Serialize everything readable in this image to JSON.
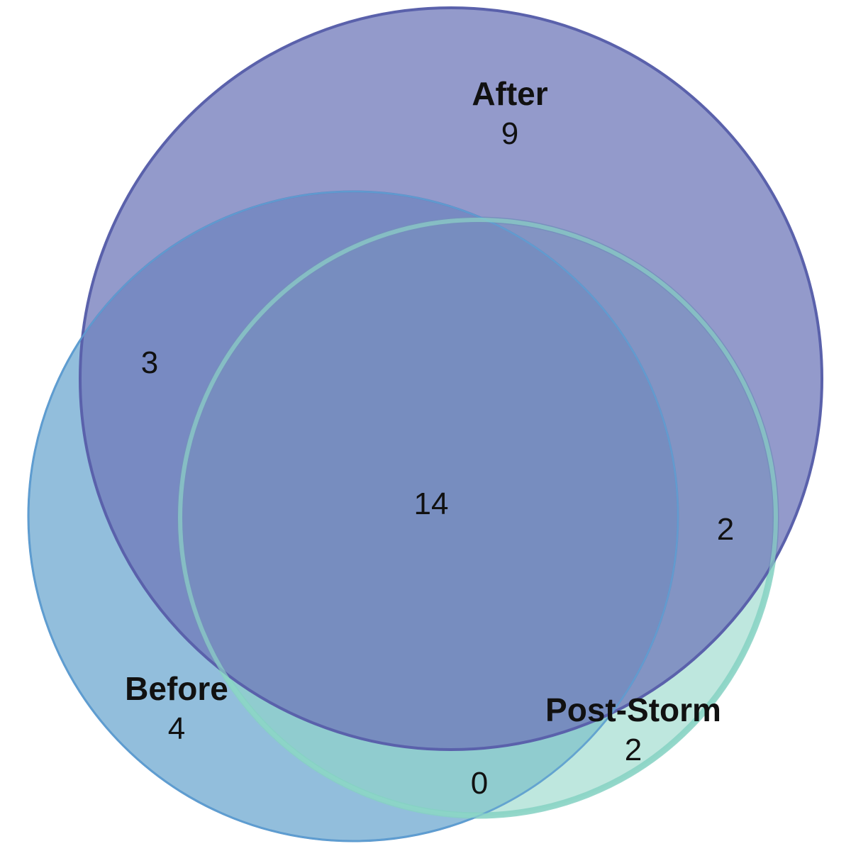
{
  "chart_data": {
    "type": "venn",
    "sets": [
      {
        "id": "after",
        "name": "After",
        "only_count": "9",
        "color": "#6f78b9"
      },
      {
        "id": "before",
        "name": "Before",
        "only_count": "4",
        "color": "#5f9fcb"
      },
      {
        "id": "post_storm",
        "name": "Post-Storm",
        "only_count": "2",
        "color": "#8fd6c6"
      }
    ],
    "intersections": [
      {
        "sets": [
          "after",
          "before"
        ],
        "count": "3"
      },
      {
        "sets": [
          "after",
          "before",
          "post_storm"
        ],
        "count": "14"
      },
      {
        "sets": [
          "after",
          "post_storm"
        ],
        "count": "2"
      },
      {
        "sets": [
          "before",
          "post_storm"
        ],
        "count": "0"
      }
    ]
  }
}
